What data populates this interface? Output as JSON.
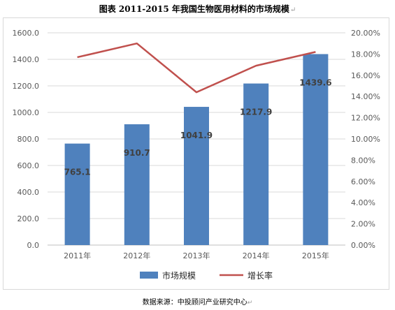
{
  "page": {
    "title": "图表    2011-2015 年我国生物医用材料的市场规模",
    "title_mark": "↵",
    "source": "数据来源：中投顾问产业研究中心",
    "source_mark": "↵"
  },
  "colors": {
    "bar": "#4f81bd",
    "line": "#c0504d",
    "grid": "#d9d9d9",
    "axis_text": "#595959"
  },
  "chart_data": {
    "type": "bar",
    "categories": [
      "2011年",
      "2012年",
      "2013年",
      "2014年",
      "2015年"
    ],
    "series": [
      {
        "name": "市场规模",
        "type": "bar",
        "axis": "left",
        "values": [
          765.1,
          910.7,
          1041.9,
          1217.9,
          1439.6
        ],
        "labels": [
          "765.1",
          "910.7",
          "1041.9",
          "1217.9",
          "1439.6"
        ]
      },
      {
        "name": "增长率",
        "type": "line",
        "axis": "right",
        "values": [
          17.7,
          19.0,
          14.4,
          16.9,
          18.2
        ]
      }
    ],
    "ylim_left": [
      0,
      1600
    ],
    "yticks_left": [
      "0.0",
      "200.0",
      "400.0",
      "600.0",
      "800.0",
      "1000.0",
      "1200.0",
      "1400.0",
      "1600.0"
    ],
    "ylim_right": [
      0,
      20
    ],
    "yticks_right": [
      "0.00%",
      "2.00%",
      "4.00%",
      "6.00%",
      "8.00%",
      "10.00%",
      "12.00%",
      "14.00%",
      "16.00%",
      "18.00%",
      "20.00%"
    ],
    "legend_position": "bottom",
    "grid": true
  }
}
